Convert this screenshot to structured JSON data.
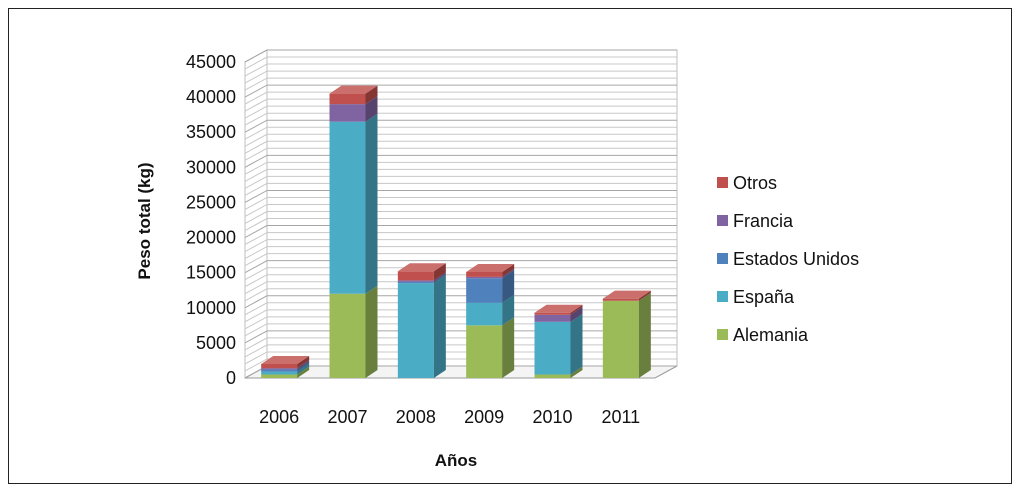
{
  "chart_data": {
    "type": "bar",
    "stacked": true,
    "three_d": true,
    "categories": [
      "2006",
      "2007",
      "2008",
      "2009",
      "2010",
      "2011"
    ],
    "series": [
      {
        "name": "Alemania",
        "color": "#9BBB59",
        "values": [
          500,
          12000,
          0,
          7500,
          500,
          11000
        ]
      },
      {
        "name": "España",
        "color": "#4BACC6",
        "values": [
          400,
          24500,
          13500,
          3200,
          7500,
          0
        ]
      },
      {
        "name": "Estados Unidos",
        "color": "#4F81BD",
        "values": [
          300,
          0,
          200,
          3500,
          0,
          0
        ]
      },
      {
        "name": "Francia",
        "color": "#8064A2",
        "values": [
          200,
          2500,
          200,
          200,
          1000,
          0
        ]
      },
      {
        "name": "Otros",
        "color": "#C0504D",
        "values": [
          600,
          1500,
          1300,
          700,
          300,
          300
        ]
      }
    ],
    "title": "",
    "xlabel": "Años",
    "ylabel": "Peso total (kg)",
    "ylim": [
      0,
      45000
    ],
    "yticks": [
      "0",
      "5000",
      "10000",
      "15000",
      "20000",
      "25000",
      "30000",
      "35000",
      "40000",
      "45000"
    ],
    "grid": true,
    "legend_position": "right",
    "legend_order": [
      "Otros",
      "Francia",
      "Estados Unidos",
      "España",
      "Alemania"
    ]
  }
}
